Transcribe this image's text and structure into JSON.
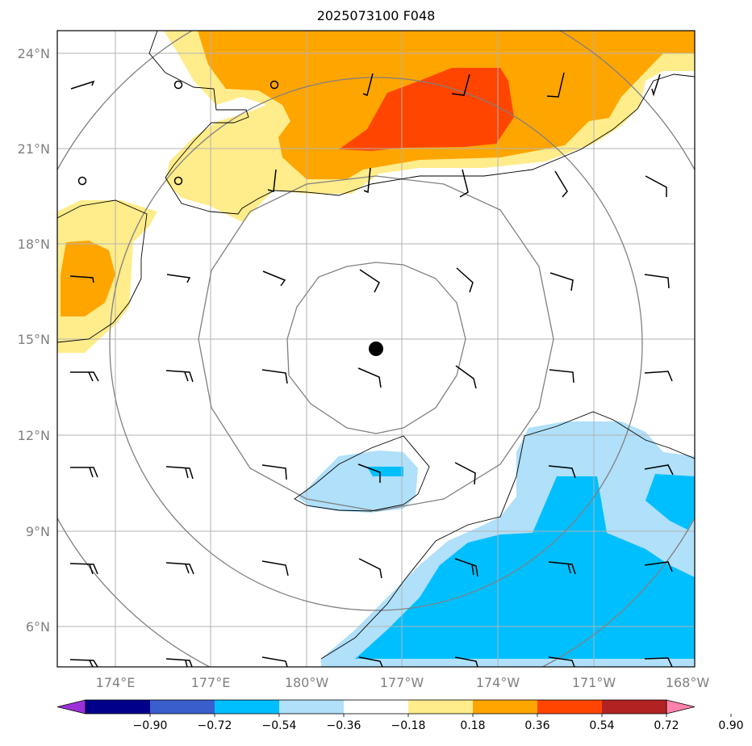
{
  "title": "2025073100 F048",
  "lat_labels": [
    "24°N",
    "21°N",
    "18°N",
    "15°N",
    "12°N",
    "9°N",
    "6°N"
  ],
  "lon_labels": [
    "174°E",
    "177°E",
    "180°W",
    "177°W",
    "174°W",
    "171°W",
    "168°W"
  ],
  "colorbar": {
    "ticks": [
      "−0.90",
      "−0.72",
      "−0.54",
      "−0.36",
      "−0.18",
      "0.18",
      "0.36",
      "0.54",
      "0.72",
      "0.90"
    ],
    "colors": [
      "#9b30d9",
      "#00008b",
      "#3a5fcd",
      "#00bfff",
      "#b0e0fa",
      "#ffffff",
      "#ffec8b",
      "#ffa500",
      "#ff4500",
      "#b22222",
      "#ff82ab"
    ]
  },
  "center_marker": "storm-center-dot",
  "station_marker": "open-circle-station"
}
